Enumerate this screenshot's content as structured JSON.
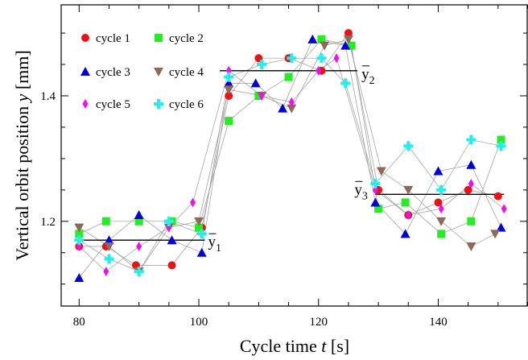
{
  "chart_data": {
    "type": "scatter",
    "xlabel_main": "Cycle time ",
    "xlabel_var": "t",
    "xlabel_unit": " [s]",
    "ylabel_main": "Vertical orbit position ",
    "ylabel_var": "y",
    "ylabel_unit": " [mm]",
    "xlim": [
      77,
      155
    ],
    "ylim": [
      1.065,
      1.545
    ],
    "xticks": [
      80,
      100,
      120,
      140
    ],
    "xtick_labels": [
      "80",
      "100",
      "120",
      "140"
    ],
    "yticks": [
      1.2,
      1.4
    ],
    "ytick_labels": [
      "1.2",
      "1.4"
    ],
    "x_minor_step": 5,
    "y_minor_step": 0.05,
    "grid": false,
    "legend_position": "top-left",
    "series": [
      {
        "name": "cycle 1",
        "color": "#ee1111",
        "marker": "circle",
        "points": [
          [
            80,
            1.16
          ],
          [
            84.5,
            1.16
          ],
          [
            89.5,
            1.13
          ],
          [
            95.5,
            1.13
          ],
          [
            100.5,
            1.19
          ],
          [
            105,
            1.4
          ],
          [
            110,
            1.46
          ],
          [
            115,
            1.46
          ],
          [
            120.5,
            1.44
          ],
          [
            125,
            1.5
          ],
          [
            130,
            1.25
          ],
          [
            135,
            1.21
          ],
          [
            140,
            1.23
          ],
          [
            145,
            1.25
          ],
          [
            150,
            1.24
          ]
        ]
      },
      {
        "name": "cycle 2",
        "color": "#22ee22",
        "marker": "square",
        "points": [
          [
            80,
            1.18
          ],
          [
            84.5,
            1.2
          ],
          [
            90,
            1.2
          ],
          [
            95.5,
            1.2
          ],
          [
            100,
            1.19
          ],
          [
            105,
            1.36
          ],
          [
            110,
            1.4
          ],
          [
            115,
            1.43
          ],
          [
            120.5,
            1.49
          ],
          [
            125.5,
            1.48
          ],
          [
            130,
            1.22
          ],
          [
            134.5,
            1.23
          ],
          [
            140.5,
            1.18
          ],
          [
            145.5,
            1.2
          ],
          [
            150.5,
            1.33
          ]
        ]
      },
      {
        "name": "cycle 3",
        "color": "#0000dd",
        "marker": "triangle-up",
        "points": [
          [
            80,
            1.11
          ],
          [
            85,
            1.17
          ],
          [
            90,
            1.21
          ],
          [
            95.5,
            1.17
          ],
          [
            100.5,
            1.15
          ],
          [
            105,
            1.42
          ],
          [
            109.5,
            1.42
          ],
          [
            114,
            1.38
          ],
          [
            119,
            1.49
          ],
          [
            124.5,
            1.48
          ],
          [
            129.5,
            1.23
          ],
          [
            134.5,
            1.18
          ],
          [
            140,
            1.28
          ],
          [
            145.5,
            1.29
          ],
          [
            150.5,
            1.19
          ]
        ]
      },
      {
        "name": "cycle 4",
        "color": "#8b6a5a",
        "marker": "triangle-down",
        "points": [
          [
            80,
            1.19
          ],
          [
            85,
            1.16
          ],
          [
            90,
            1.12
          ],
          [
            95,
            1.19
          ],
          [
            100,
            1.2
          ],
          [
            105,
            1.41
          ],
          [
            110.5,
            1.4
          ],
          [
            115.5,
            1.38
          ],
          [
            121,
            1.48
          ],
          [
            125,
            1.49
          ],
          [
            130.5,
            1.28
          ],
          [
            135,
            1.25
          ],
          [
            140.5,
            1.2
          ],
          [
            145.5,
            1.16
          ],
          [
            149.5,
            1.18
          ]
        ]
      },
      {
        "name": "cycle 5",
        "color": "#ee11ee",
        "marker": "diamond",
        "points": [
          [
            80,
            1.16
          ],
          [
            84.5,
            1.12
          ],
          [
            90,
            1.16
          ],
          [
            95,
            1.19
          ],
          [
            99,
            1.23
          ],
          [
            105,
            1.44
          ],
          [
            110.5,
            1.4
          ],
          [
            115.5,
            1.39
          ],
          [
            120,
            1.44
          ],
          [
            123,
            1.46
          ],
          [
            129.5,
            1.25
          ],
          [
            135,
            1.21
          ],
          [
            140.5,
            1.22
          ],
          [
            145.5,
            1.26
          ],
          [
            151,
            1.22
          ]
        ]
      },
      {
        "name": "cycle 6",
        "color": "#22eeee",
        "marker": "plus",
        "points": [
          [
            80,
            1.17
          ],
          [
            85,
            1.14
          ],
          [
            90,
            1.12
          ],
          [
            95,
            1.2
          ],
          [
            100.5,
            1.18
          ],
          [
            105,
            1.43
          ],
          [
            110.5,
            1.45
          ],
          [
            115.5,
            1.46
          ],
          [
            120.5,
            1.46
          ],
          [
            124.5,
            1.42
          ],
          [
            129.5,
            1.26
          ],
          [
            135,
            1.32
          ],
          [
            140.5,
            1.25
          ],
          [
            145.5,
            1.33
          ],
          [
            150.5,
            1.32
          ]
        ]
      }
    ],
    "mean_lines": [
      {
        "label": "y",
        "subscript": "1",
        "x_start": 80,
        "x_end": 101,
        "y": 1.17
      },
      {
        "label": "y",
        "subscript": "2",
        "x_start": 103.5,
        "x_end": 126.5,
        "y": 1.44
      },
      {
        "label": "y",
        "subscript": "3",
        "x_start": 129.5,
        "x_end": 151,
        "y": 1.243
      }
    ]
  }
}
